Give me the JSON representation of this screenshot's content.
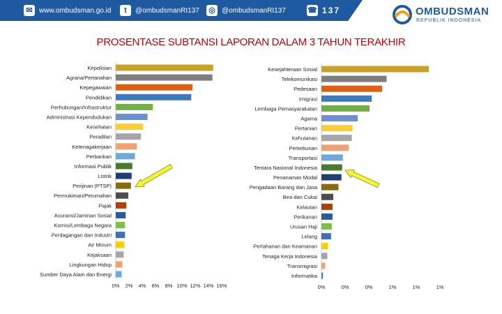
{
  "header": {
    "website": "www.ombudsman.go.id",
    "twitter": "@ombudsmanRI137",
    "instagram": "@ombudsmanRI137",
    "hotline": "137",
    "logo_name": "OMBUDSMAN",
    "logo_sub": "REPUBLIK INDONESIA"
  },
  "colors": {
    "header_blue": "#1f5aa0",
    "title_red": "#c00000",
    "arrow_yellow": "#f5f530"
  },
  "chart_data": [
    {
      "type": "bar",
      "orientation": "horizontal",
      "title": "PROSENTASE SUBTANSI LAPORAN DALAM 3 TAHUN TERAKHIR",
      "categories": [
        "Kepolisian",
        "Agraria/Pertanahan",
        "Kepegawaian",
        "Pendidikan",
        "Perhubungan/Infrastruktur",
        "Administrasi Kependudukan",
        "Kesehatan",
        "Peradilan",
        "Ketenagakerjaan",
        "Perbankan",
        "Informasi Publik",
        "Listrik",
        "Perijinan (PTSP)",
        "Permukiman/Perumahan",
        "Pajak",
        "Asuransi/Jaminan Sosial",
        "Komisi/Lembaga Negara",
        "Perdagangan dan Industri",
        "Air Minum",
        "Kejaksaan",
        "Lingkungan Hidup",
        "Sumber Daya Alam dan Energi"
      ],
      "values": [
        14.7,
        14.6,
        11.6,
        11.4,
        5.6,
        4.8,
        4.1,
        3.8,
        3.2,
        2.9,
        2.5,
        2.4,
        2.3,
        1.9,
        1.6,
        1.5,
        1.4,
        1.4,
        1.3,
        1.2,
        1.0,
        0.9
      ],
      "colors": [
        "#c9a227",
        "#7f7f7f",
        "#e06010",
        "#3b79c0",
        "#6fb143",
        "#6c8fd0",
        "#ffcc33",
        "#a6a6a6",
        "#f4a070",
        "#6fa8dc",
        "#4a7a30",
        "#1f3f70",
        "#8a6a10",
        "#4d4d4d",
        "#a64210",
        "#2e5a9a",
        "#7cbf4c",
        "#3f6fbf",
        "#ffcc00",
        "#a6a6a6",
        "#f4a070",
        "#6fa8dc"
      ],
      "xticks": [
        "0%",
        "2%",
        "4%",
        "6%",
        "8%",
        "10%",
        "12%",
        "14%",
        "16%"
      ],
      "xlim": [
        0,
        16
      ]
    },
    {
      "type": "bar",
      "orientation": "horizontal",
      "categories": [
        "Kesejahteraan Sosial",
        "Telekomunikasi",
        "Pedesaan",
        "Imigrasi",
        "Lembaga Pemasyarakatan",
        "Agama",
        "Pertanian",
        "Kehutanan",
        "Perkebunan",
        "Transportasi",
        "Tentara Nasional Indonesia",
        "Penanaman Modal",
        "Pengadaan Barang dan Jasa",
        "Bea dan Cukai",
        "Kelautan",
        "Perikanan",
        "Urusan Haji",
        "Lelang",
        "Pertahanan dan Keamanan",
        "Tenaga Kerja Indonesia",
        "Transmigrasi",
        "Informatika"
      ],
      "values": [
        1.45,
        0.88,
        0.82,
        0.68,
        0.65,
        0.49,
        0.42,
        0.41,
        0.37,
        0.29,
        0.28,
        0.27,
        0.23,
        0.16,
        0.15,
        0.15,
        0.14,
        0.13,
        0.09,
        0.08,
        0.05,
        0.02
      ],
      "colors": [
        "#c9a227",
        "#7f7f7f",
        "#e06010",
        "#3b79c0",
        "#6fb143",
        "#6c8fd0",
        "#ffcc33",
        "#a6a6a6",
        "#f4a070",
        "#6fa8dc",
        "#4a7a30",
        "#1f3f70",
        "#8a6a10",
        "#4d4d4d",
        "#a64210",
        "#2e5a9a",
        "#7cbf4c",
        "#3f6fbf",
        "#ffcc00",
        "#a6a6a6",
        "#f4a070",
        "#3b79c0"
      ],
      "xticks": [
        "0%",
        "0%",
        "0%",
        "1%",
        "1%",
        "1%"
      ],
      "xlim": [
        0,
        1.6
      ]
    }
  ]
}
